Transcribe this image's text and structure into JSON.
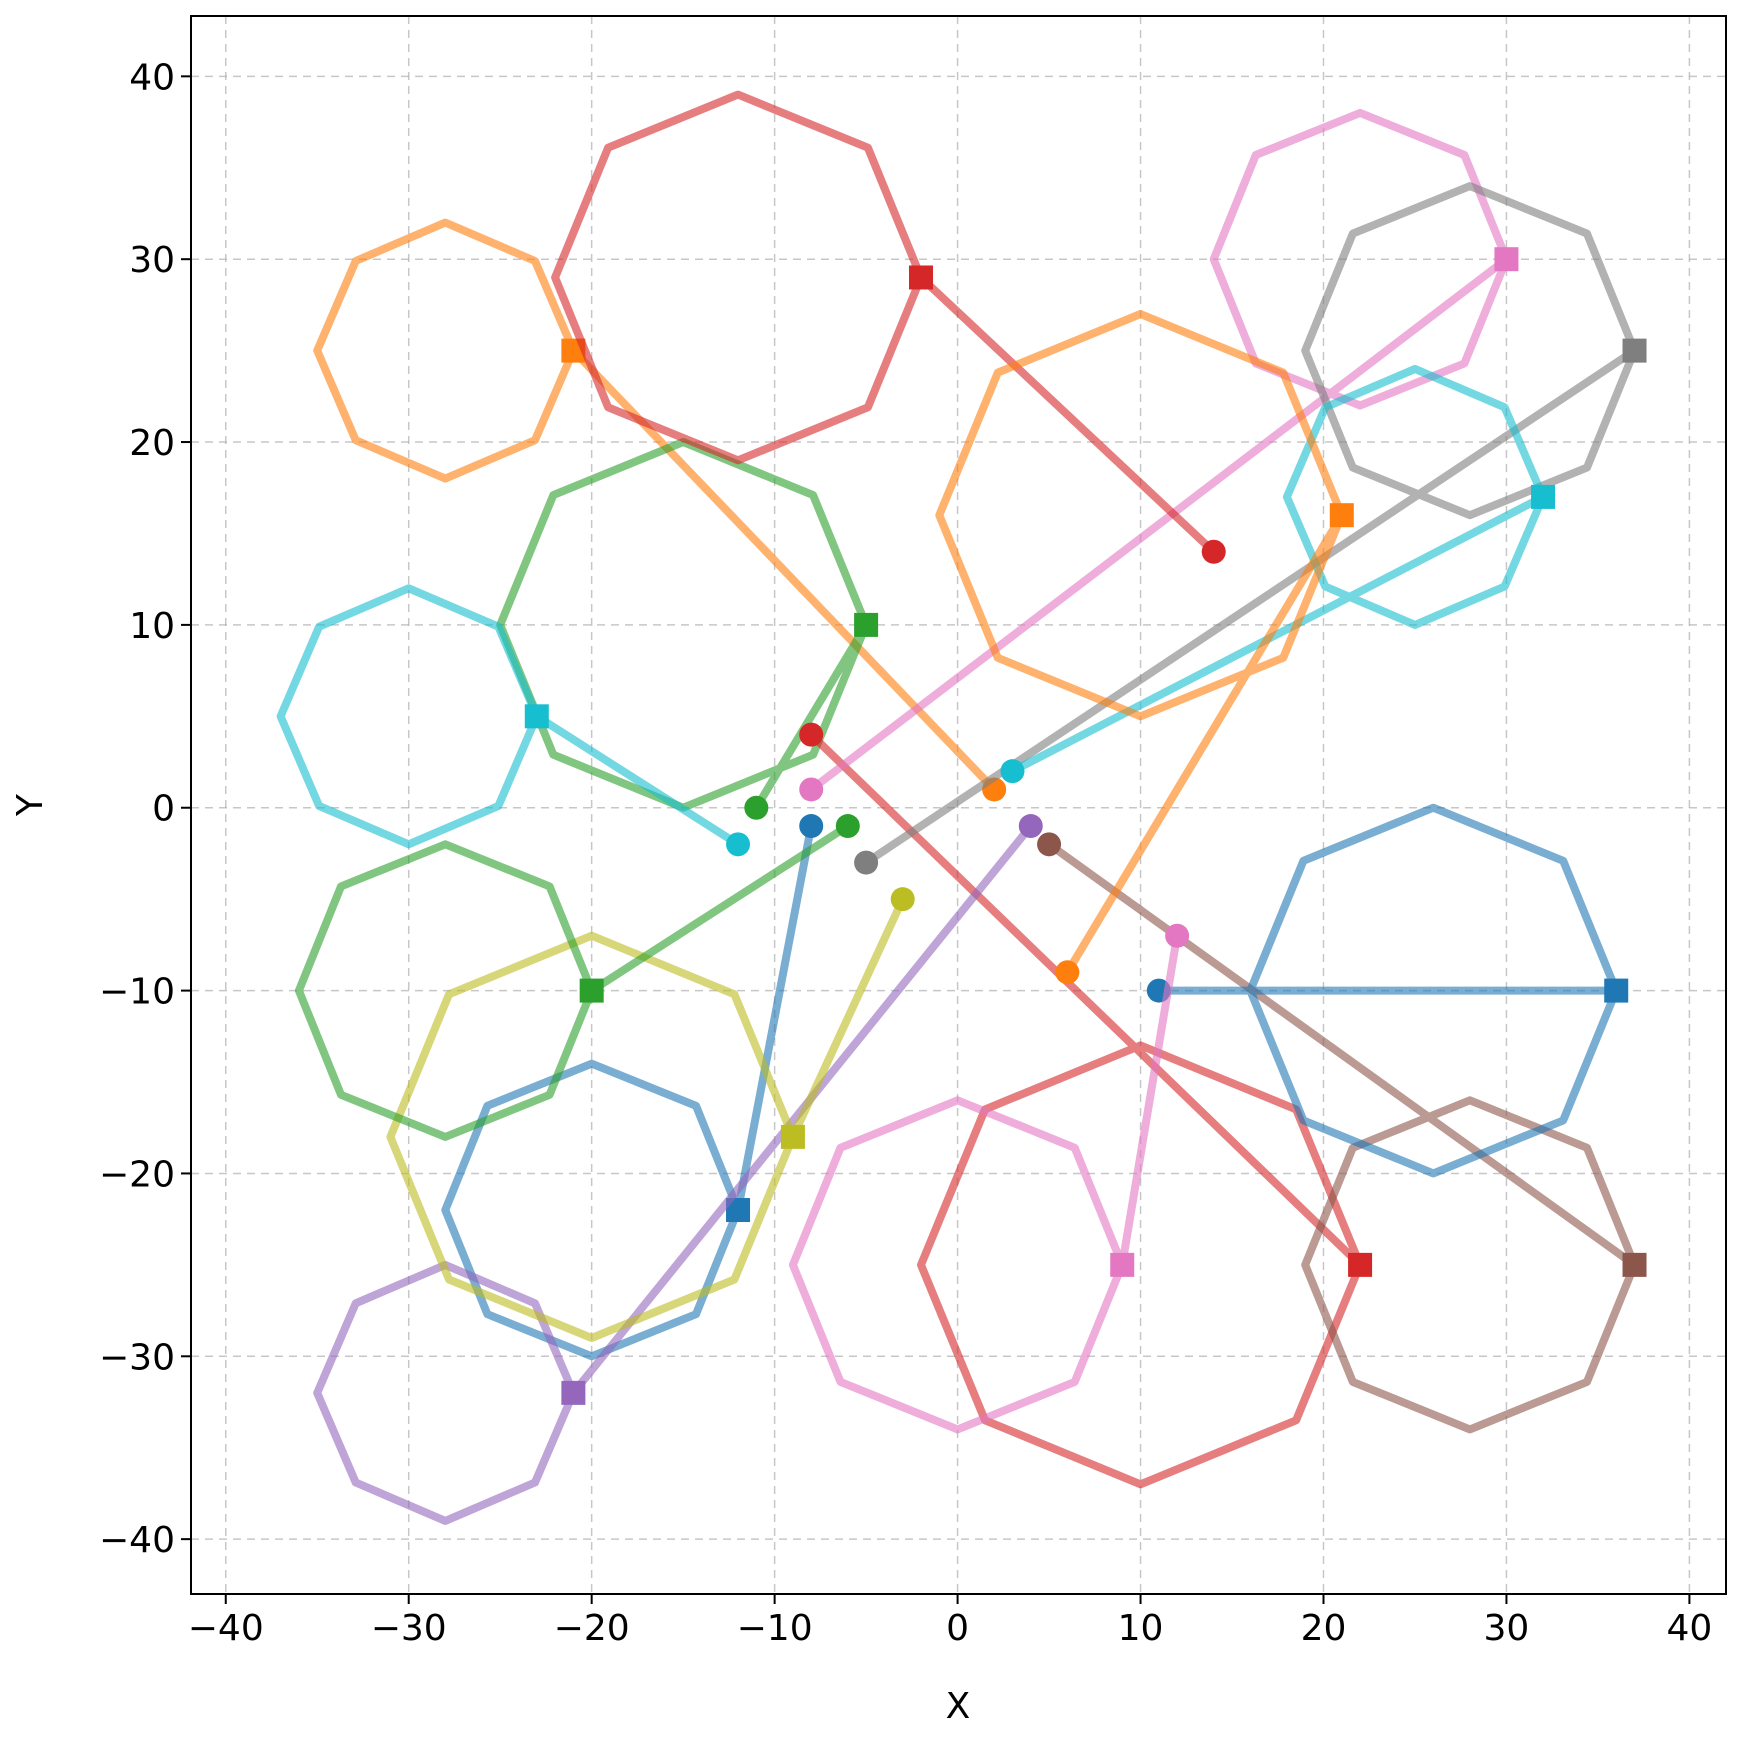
{
  "chart_data": {
    "type": "trajectory",
    "xlabel": "X",
    "ylabel": "Y",
    "xlim": [
      -41.9,
      42
    ],
    "ylim": [
      -43,
      43.3
    ],
    "xticks": [
      {
        "value": -40,
        "label": "−40"
      },
      {
        "value": -30,
        "label": "−30"
      },
      {
        "value": -20,
        "label": "−20"
      },
      {
        "value": -10,
        "label": "−10"
      },
      0,
      10,
      20,
      30,
      40
    ],
    "yticks": [
      {
        "value": -40,
        "label": "−40"
      },
      {
        "value": -30,
        "label": "−30"
      },
      {
        "value": -20,
        "label": "−20"
      },
      {
        "value": -10,
        "label": "−10"
      },
      0,
      10,
      20,
      30,
      40
    ],
    "grid": true,
    "series": [
      {
        "color": "#1f77b4",
        "x": [
          -8,
          -12,
          -14.3,
          -20,
          -25.7,
          -28,
          -25.7,
          -20,
          -14.3,
          -12
        ],
        "y": [
          -1,
          -22,
          -16.3,
          -14,
          -16.3,
          -22,
          -27.7,
          -30,
          -27.7,
          -22
        ]
      },
      {
        "color": "#ff7f0e",
        "x": [
          2,
          -21,
          -23.1,
          -28,
          -32.9,
          -35,
          -32.9,
          -28,
          -23.1,
          -21
        ],
        "y": [
          1,
          25,
          29.9,
          32,
          29.9,
          25,
          20.1,
          18,
          20.1,
          25
        ]
      },
      {
        "color": "#2ca02c",
        "x": [
          -11,
          -5,
          -7.9,
          -15,
          -22.1,
          -25,
          -22.1,
          -15,
          -7.9,
          -5
        ],
        "y": [
          0,
          10,
          17.1,
          20,
          17.1,
          10,
          2.9,
          0,
          2.9,
          10
        ]
      },
      {
        "color": "#d62728",
        "x": [
          -8,
          22,
          18.5,
          10,
          1.5,
          -2,
          1.5,
          10,
          18.5,
          22
        ],
        "y": [
          4,
          -25,
          -16.5,
          -13,
          -16.5,
          -25,
          -33.5,
          -37,
          -33.5,
          -25
        ]
      },
      {
        "color": "#9467bd",
        "x": [
          4,
          -21,
          -23.1,
          -28,
          -32.9,
          -35,
          -32.9,
          -28,
          -23.1,
          -21
        ],
        "y": [
          -1,
          -32,
          -27.1,
          -25,
          -27.1,
          -32,
          -36.9,
          -39,
          -36.9,
          -32
        ]
      },
      {
        "color": "#8c564b",
        "x": [
          5,
          37,
          34.4,
          28,
          21.6,
          19,
          21.6,
          28,
          34.4,
          37
        ],
        "y": [
          -2,
          -25,
          -18.6,
          -16,
          -18.6,
          -25,
          -31.4,
          -34,
          -31.4,
          -25
        ]
      },
      {
        "color": "#e377c2",
        "x": [
          -8,
          30,
          27.7,
          22,
          16.3,
          14,
          16.3,
          22,
          27.7,
          30
        ],
        "y": [
          1,
          30,
          35.7,
          38,
          35.7,
          30,
          24.3,
          22,
          24.3,
          30
        ]
      },
      {
        "color": "#7f7f7f",
        "x": [
          -5,
          37,
          34.4,
          28,
          21.6,
          19,
          21.6,
          28,
          34.4,
          37
        ],
        "y": [
          -3,
          25,
          31.4,
          34,
          31.4,
          25,
          18.6,
          16,
          18.6,
          25
        ]
      },
      {
        "color": "#bcbd22",
        "x": [
          -3,
          -9,
          -12.2,
          -20,
          -27.8,
          -31,
          -27.8,
          -20,
          -12.2,
          -9
        ],
        "y": [
          -5,
          -18,
          -10.2,
          -7,
          -10.2,
          -18,
          -25.8,
          -29,
          -25.8,
          -18
        ]
      },
      {
        "color": "#17becf",
        "x": [
          3,
          32,
          29.9,
          25,
          20.1,
          18,
          20.1,
          25,
          29.9,
          32
        ],
        "y": [
          2,
          17,
          21.9,
          24,
          21.9,
          17,
          12.1,
          10,
          12.1,
          17
        ]
      },
      {
        "color": "#1f77b4",
        "x": [
          11,
          36,
          33.1,
          26,
          18.9,
          16,
          18.9,
          26,
          33.1,
          36
        ],
        "y": [
          -10,
          -10,
          -2.9,
          0,
          -2.9,
          -10,
          -17.1,
          -20,
          -17.1,
          -10
        ]
      },
      {
        "color": "#d62728",
        "x": [
          14,
          -2,
          -4.9,
          -12,
          -19.1,
          -22,
          -19.1,
          -12,
          -4.9,
          -2
        ],
        "y": [
          14,
          29,
          36.1,
          39,
          36.1,
          29,
          21.9,
          19,
          21.9,
          29
        ]
      },
      {
        "color": "#ff7f0e",
        "x": [
          6,
          21,
          17.8,
          10,
          2.2,
          -1,
          2.2,
          10,
          17.8,
          21
        ],
        "y": [
          -9,
          16,
          23.8,
          27,
          23.8,
          16,
          8.2,
          5,
          8.2,
          16
        ]
      },
      {
        "color": "#17becf",
        "x": [
          -12,
          -23,
          -25.1,
          -30,
          -34.9,
          -37,
          -34.9,
          -30,
          -25.1,
          -23
        ],
        "y": [
          -2,
          5,
          9.9,
          12,
          9.9,
          5,
          0.1,
          -2,
          0.1,
          5
        ]
      },
      {
        "color": "#2ca02c",
        "x": [
          -6,
          -20,
          -22.3,
          -28,
          -33.7,
          -36,
          -33.7,
          -28,
          -22.3,
          -20
        ],
        "y": [
          -1,
          -10,
          -4.3,
          -2,
          -4.3,
          -10,
          -15.7,
          -18,
          -15.7,
          -10
        ]
      },
      {
        "color": "#e377c2",
        "x": [
          12,
          9,
          6.4,
          0,
          -6.4,
          -9,
          -6.4,
          0,
          6.4,
          9
        ],
        "y": [
          -7,
          -25,
          -18.6,
          -16,
          -18.6,
          -25,
          -31.4,
          -34,
          -31.4,
          -25
        ]
      }
    ]
  }
}
